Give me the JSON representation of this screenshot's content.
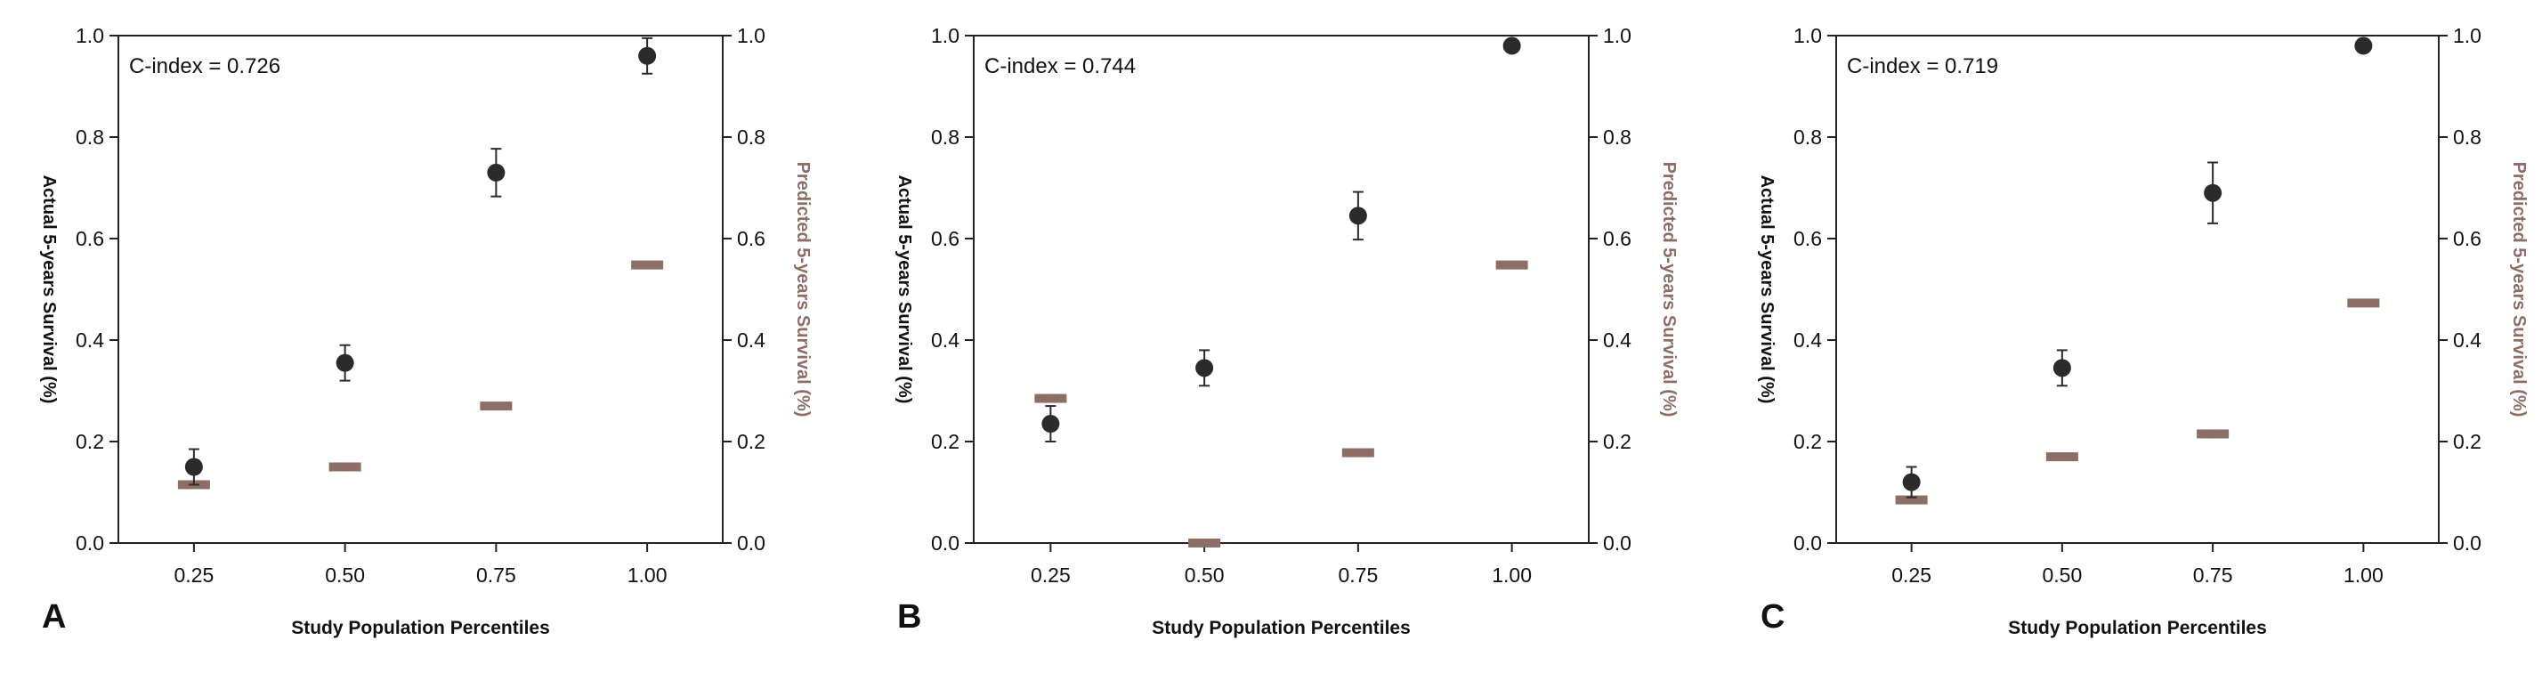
{
  "figure": {
    "colors": {
      "actual": "#2b2b2b",
      "predicted": "#8c6e66",
      "axis": "#222222"
    }
  },
  "chart_data": [
    {
      "panel_label": "A",
      "type": "scatter",
      "annotation": "C-index = 0.726",
      "xlabel": "Study Population Percentiles",
      "ylabel_left": "Actual 5-years Survival (%)",
      "ylabel_right": "Predicted 5-years Survival (%)",
      "x_categories": [
        "0.25",
        "0.50",
        "0.75",
        "1.00"
      ],
      "y_ticks": [
        "0.0",
        "0.2",
        "0.4",
        "0.6",
        "0.8",
        "1.0"
      ],
      "ylim": [
        0,
        1
      ],
      "grid": false,
      "series": [
        {
          "name": "Actual 5-years Survival (%)",
          "marker": "circle",
          "values": [
            0.15,
            0.355,
            0.73,
            0.96
          ],
          "error": [
            0.035,
            0.035,
            0.047,
            0.035
          ]
        },
        {
          "name": "Predicted 5-years Survival (%)",
          "marker": "dash",
          "values": [
            0.115,
            0.15,
            0.27,
            0.548
          ]
        }
      ]
    },
    {
      "panel_label": "B",
      "type": "scatter",
      "annotation": "C-index = 0.744",
      "xlabel": "Study Population Percentiles",
      "ylabel_left": "Actual 5-years Survival (%)",
      "ylabel_right": "Predicted 5-years Survival (%)",
      "x_categories": [
        "0.25",
        "0.50",
        "0.75",
        "1.00"
      ],
      "y_ticks": [
        "0.0",
        "0.2",
        "0.4",
        "0.6",
        "0.8",
        "1.0"
      ],
      "ylim": [
        0,
        1
      ],
      "grid": false,
      "series": [
        {
          "name": "Actual 5-years Survival (%)",
          "marker": "circle",
          "values": [
            0.235,
            0.345,
            0.645,
            0.98
          ],
          "error": [
            0.035,
            0.035,
            0.047,
            0.0
          ]
        },
        {
          "name": "Predicted 5-years Survival (%)",
          "marker": "dash",
          "values": [
            0.285,
            0.0,
            0.178,
            0.548
          ]
        }
      ]
    },
    {
      "panel_label": "C",
      "type": "scatter",
      "annotation": "C-index = 0.719",
      "xlabel": "Study Population Percentiles",
      "ylabel_left": "Actual 5-years Survival (%)",
      "ylabel_right": "Predicted 5-years Survival (%)",
      "x_categories": [
        "0.25",
        "0.50",
        "0.75",
        "1.00"
      ],
      "y_ticks": [
        "0.0",
        "0.2",
        "0.4",
        "0.6",
        "0.8",
        "1.0"
      ],
      "ylim": [
        0,
        1
      ],
      "grid": false,
      "series": [
        {
          "name": "Actual 5-years Survival (%)",
          "marker": "circle",
          "values": [
            0.12,
            0.345,
            0.69,
            0.98
          ],
          "error": [
            0.03,
            0.035,
            0.06,
            0.0
          ]
        },
        {
          "name": "Predicted 5-years Survival (%)",
          "marker": "dash",
          "values": [
            0.085,
            0.17,
            0.215,
            0.473
          ]
        }
      ]
    }
  ]
}
